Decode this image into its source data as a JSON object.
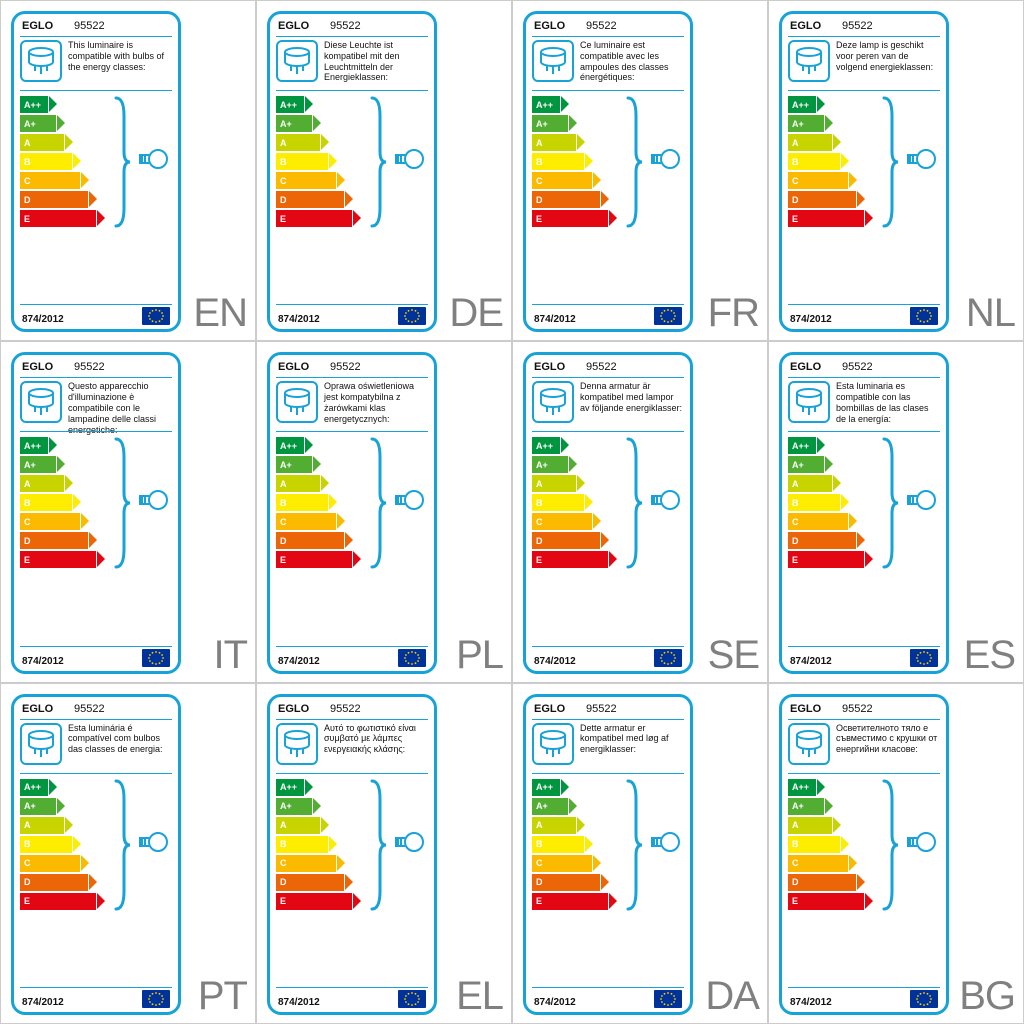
{
  "brand": "EGLO",
  "model": "95522",
  "regulation": "874/2012",
  "accent_color": "#17a2d8",
  "eu_flag_bg": "#003399",
  "eu_flag_star": "#ffcc00",
  "langcode_color": "#808080",
  "energy_classes": [
    {
      "code": "A++",
      "width": 28,
      "color": "#009640"
    },
    {
      "code": "A+",
      "width": 36,
      "color": "#52ae32"
    },
    {
      "code": "A",
      "width": 44,
      "color": "#c8d400"
    },
    {
      "code": "B",
      "width": 52,
      "color": "#ffed00"
    },
    {
      "code": "C",
      "width": 60,
      "color": "#fbba00"
    },
    {
      "code": "D",
      "width": 68,
      "color": "#ec6608"
    },
    {
      "code": "E",
      "width": 76,
      "color": "#e30613"
    }
  ],
  "cards": [
    {
      "lang": "EN",
      "text": "This luminaire is compatible with bulbs of the energy classes:"
    },
    {
      "lang": "DE",
      "text": "Diese Leuchte ist kompatibel mit den Leuchtmitteln der Energieklassen:"
    },
    {
      "lang": "FR",
      "text": "Ce luminaire est compatible avec les ampoules des classes énergétiques:"
    },
    {
      "lang": "NL",
      "text": "Deze lamp is geschikt voor peren van de volgend energieklassen:"
    },
    {
      "lang": "IT",
      "text": "Questo apparecchio d'illuminazione è compatibile con le lampadine delle classi energetiche:"
    },
    {
      "lang": "PL",
      "text": "Oprawa oświetleniowa jest kompatybilna z żarówkami klas energetycznych:"
    },
    {
      "lang": "SE",
      "text": "Denna armatur är kompatibel med lampor av följande energiklasser:"
    },
    {
      "lang": "ES",
      "text": "Esta luminaria es compatible con las bombillas de las clases de la energía:"
    },
    {
      "lang": "PT",
      "text": "Esta luminária é compatível com bulbos das classes de energia:"
    },
    {
      "lang": "EL",
      "text": "Αυτό το φωτιστικό είναι συμβατό με λάμπες ενεργειακής κλάσης:"
    },
    {
      "lang": "DA",
      "text": "Dette armatur er kompatibel med løg af energiklasser:"
    },
    {
      "lang": "BG",
      "text": "Осветителното тяло е съвместимо с крушки от енергийни класове:"
    }
  ]
}
